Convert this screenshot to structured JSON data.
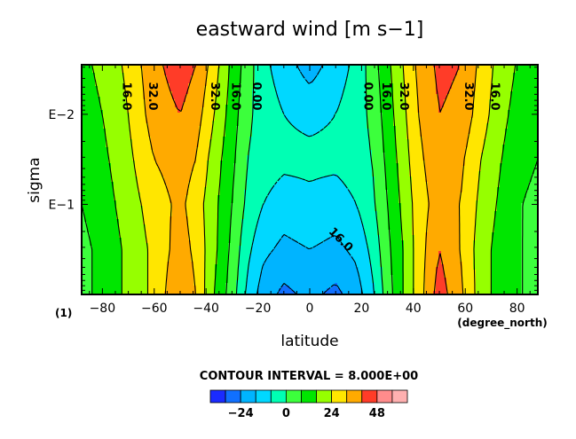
{
  "chart_data": {
    "type": "contour",
    "title": "eastward wind [m s−1]",
    "xlabel": "latitude",
    "xunits": "(degree_north)",
    "ylabel": "sigma",
    "panel_label": "(1)",
    "xlim": [
      -88,
      88
    ],
    "ylim_log10": [
      -2.55,
      0
    ],
    "x_ticks": [
      -80,
      -60,
      -40,
      -20,
      0,
      20,
      40,
      60,
      80
    ],
    "y_ticks": [
      "E−2",
      "E−1"
    ],
    "contour_interval_text": "CONTOUR INTERVAL = 8.000E+00",
    "contour_interval": 8,
    "contour_labels": [
      {
        "text": "16.0",
        "lat": -72,
        "log_sigma": -2.2
      },
      {
        "text": "32.0",
        "lat": -62,
        "log_sigma": -2.2
      },
      {
        "text": "32.0",
        "lat": -38,
        "log_sigma": -2.2
      },
      {
        "text": "16.0",
        "lat": -30,
        "log_sigma": -2.2
      },
      {
        "text": "0.00",
        "lat": -22,
        "log_sigma": -2.2
      },
      {
        "text": "0.00",
        "lat": 21,
        "log_sigma": -2.2
      },
      {
        "text": "16.0",
        "lat": 28,
        "log_sigma": -2.2
      },
      {
        "text": "32.0",
        "lat": 35,
        "log_sigma": -2.2
      },
      {
        "text": "32.0",
        "lat": 60,
        "log_sigma": -2.2
      },
      {
        "text": "16.0",
        "lat": 70,
        "log_sigma": -2.2
      },
      {
        "text": "16.0",
        "lat": 11,
        "log_sigma": -0.58
      }
    ],
    "colorbar": {
      "levels": [
        -32,
        -24,
        -16,
        -8,
        0,
        8,
        16,
        24,
        32,
        40,
        48,
        56
      ],
      "tick_labels": [
        "−24",
        "0",
        "24",
        "48"
      ],
      "colors": [
        "#1a2bff",
        "#1070ff",
        "#00b4ff",
        "#00d8ff",
        "#00ffb4",
        "#3cff3c",
        "#00e600",
        "#96ff00",
        "#ffe600",
        "#ffaa00",
        "#ff3c28",
        "#ff8c8c",
        "#ffb0b0"
      ]
    },
    "field": [
      {
        "lat": -88,
        "u": [
          14,
          12,
          10,
          8,
          6,
          6
        ]
      },
      {
        "lat": -80,
        "u": [
          18,
          16,
          14,
          12,
          10,
          10
        ]
      },
      {
        "lat": -70,
        "u": [
          26,
          24,
          22,
          20,
          18,
          18
        ]
      },
      {
        "lat": -60,
        "u": [
          38,
          36,
          32,
          28,
          26,
          26
        ]
      },
      {
        "lat": -50,
        "u": [
          44,
          40,
          36,
          34,
          36,
          40
        ]
      },
      {
        "lat": -44,
        "u": [
          40,
          36,
          32,
          28,
          30,
          32
        ]
      },
      {
        "lat": -38,
        "u": [
          30,
          26,
          22,
          20,
          20,
          18
        ]
      },
      {
        "lat": -30,
        "u": [
          14,
          12,
          10,
          8,
          6,
          4
        ]
      },
      {
        "lat": -24,
        "u": [
          4,
          2,
          0,
          -2,
          -6,
          -10
        ]
      },
      {
        "lat": -18,
        "u": [
          -6,
          -4,
          -4,
          -8,
          -14,
          -20
        ]
      },
      {
        "lat": -10,
        "u": [
          -12,
          -8,
          -6,
          -12,
          -18,
          -26
        ]
      },
      {
        "lat": 0,
        "u": [
          -20,
          -10,
          -6,
          -10,
          -16,
          -22
        ]
      },
      {
        "lat": 10,
        "u": [
          -12,
          -8,
          -6,
          -12,
          -18,
          -26
        ]
      },
      {
        "lat": 18,
        "u": [
          -6,
          -4,
          -4,
          -8,
          -14,
          -20
        ]
      },
      {
        "lat": 24,
        "u": [
          4,
          2,
          0,
          -2,
          -6,
          -10
        ]
      },
      {
        "lat": 30,
        "u": [
          14,
          12,
          10,
          8,
          6,
          4
        ]
      },
      {
        "lat": 36,
        "u": [
          24,
          22,
          20,
          18,
          16,
          16
        ]
      },
      {
        "lat": 42,
        "u": [
          34,
          32,
          30,
          28,
          28,
          28
        ]
      },
      {
        "lat": 50,
        "u": [
          42,
          40,
          38,
          36,
          40,
          44
        ]
      },
      {
        "lat": 58,
        "u": [
          40,
          38,
          34,
          32,
          32,
          34
        ]
      },
      {
        "lat": 66,
        "u": [
          30,
          28,
          24,
          22,
          20,
          20
        ]
      },
      {
        "lat": 74,
        "u": [
          20,
          18,
          16,
          14,
          12,
          12
        ]
      },
      {
        "lat": 82,
        "u": [
          14,
          12,
          10,
          8,
          8,
          8
        ]
      },
      {
        "lat": 88,
        "u": [
          10,
          8,
          8,
          6,
          6,
          6
        ]
      }
    ],
    "field_log_sigma": [
      -2.55,
      -2.0,
      -1.5,
      -1.0,
      -0.5,
      0.0
    ]
  }
}
